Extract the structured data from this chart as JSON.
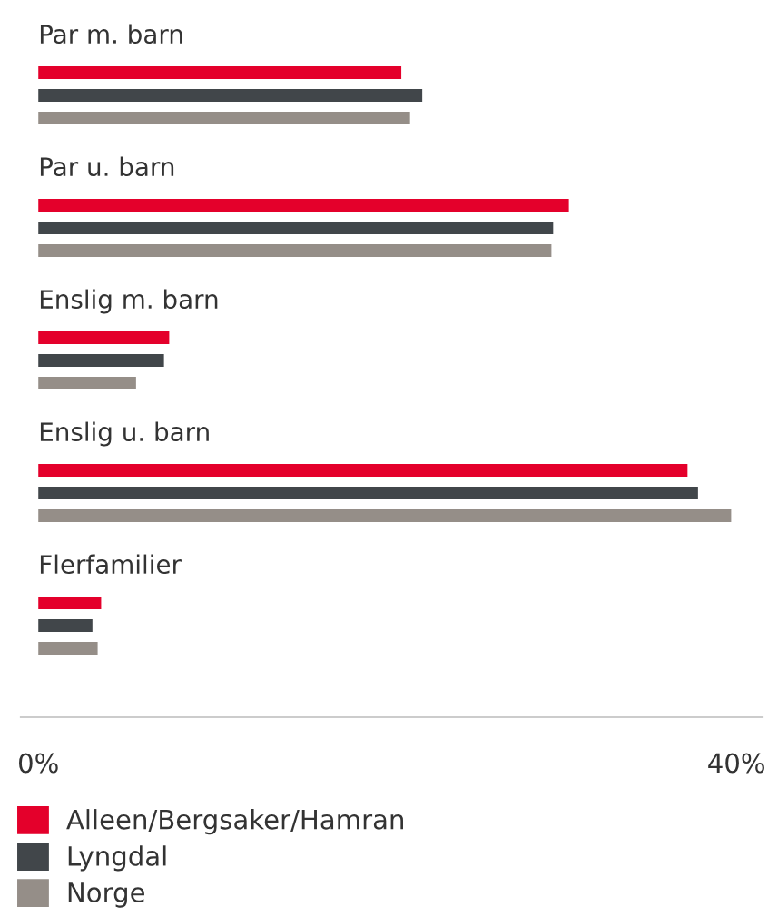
{
  "chart_data": {
    "type": "bar",
    "orientation": "horizontal",
    "categories": [
      "Par m. barn",
      "Par u. barn",
      "Enslig m. barn",
      "Enslig u. barn",
      "Flerfamilier"
    ],
    "series": [
      {
        "name": "Alleen/Bergsaker/Hamran",
        "color": "#e4002b",
        "values": [
          20.8,
          30.4,
          7.5,
          37.2,
          3.6
        ]
      },
      {
        "name": "Lyngdal",
        "color": "#41464a",
        "values": [
          22.0,
          29.5,
          7.2,
          37.8,
          3.1
        ]
      },
      {
        "name": "Norge",
        "color": "#958e88",
        "values": [
          21.3,
          29.4,
          5.6,
          39.7,
          3.4
        ]
      }
    ],
    "xlim": [
      -1,
      41.5
    ],
    "xticks": [
      {
        "value": 0,
        "label": "0%"
      },
      {
        "value": 40,
        "label": "40%"
      }
    ],
    "grid": false,
    "legend": "bottom"
  }
}
